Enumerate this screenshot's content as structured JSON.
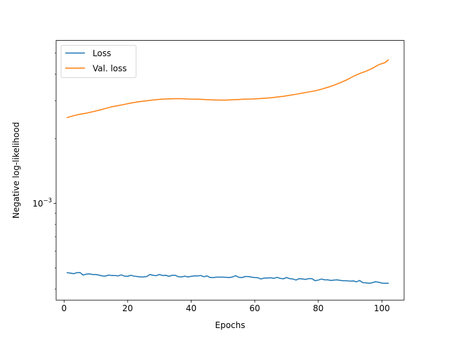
{
  "chart_data": {
    "type": "line",
    "title": "",
    "xlabel": "Epochs",
    "ylabel": "Negative log-likelihood",
    "yscale": "log",
    "xlim": [
      -2.5,
      107.0
    ],
    "ylim": [
      0.000355,
      0.00573
    ],
    "x_ticks": [
      0,
      20,
      40,
      60,
      80,
      100
    ],
    "x_tick_labels": [
      "0",
      "20",
      "40",
      "60",
      "80",
      "100"
    ],
    "y_major_ticks": [
      0.001
    ],
    "y_tick_labels": [
      {
        "base": "10",
        "exp": "−3"
      }
    ],
    "legend_position": "upper-left",
    "grid": false,
    "series": [
      {
        "name": "Loss",
        "color": "#1f77b4",
        "x": [
          1,
          2,
          3,
          4,
          5,
          6,
          7,
          8,
          9,
          10,
          11,
          12,
          13,
          14,
          15,
          16,
          17,
          18,
          19,
          20,
          21,
          22,
          23,
          24,
          25,
          26,
          27,
          28,
          29,
          30,
          31,
          32,
          33,
          34,
          35,
          36,
          37,
          38,
          39,
          40,
          41,
          42,
          43,
          44,
          45,
          46,
          47,
          48,
          49,
          50,
          51,
          52,
          53,
          54,
          55,
          56,
          57,
          58,
          59,
          60,
          61,
          62,
          63,
          64,
          65,
          66,
          67,
          68,
          69,
          70,
          71,
          72,
          73,
          74,
          75,
          76,
          77,
          78,
          79,
          80,
          81,
          82,
          83,
          84,
          85,
          86,
          87,
          88,
          89,
          90,
          91,
          92,
          93,
          94,
          95,
          96,
          97,
          98,
          99,
          100,
          101,
          102
        ],
        "values": [
          0.000476,
          0.000474,
          0.000471,
          0.000476,
          0.000477,
          0.000464,
          0.000469,
          0.00047,
          0.000467,
          0.000467,
          0.000464,
          0.00046,
          0.000459,
          0.000464,
          0.000462,
          0.000462,
          0.00046,
          0.000465,
          0.000459,
          0.000458,
          0.000463,
          0.000459,
          0.000457,
          0.000455,
          0.000455,
          0.000457,
          0.000467,
          0.000463,
          0.000461,
          0.000467,
          0.000462,
          0.000463,
          0.000458,
          0.000463,
          0.000463,
          0.000456,
          0.000455,
          0.000459,
          0.000455,
          0.000458,
          0.00046,
          0.00046,
          0.000462,
          0.000456,
          0.00046,
          0.000452,
          0.000452,
          0.000454,
          0.000454,
          0.000454,
          0.000453,
          0.000452,
          0.000455,
          0.000461,
          0.000453,
          0.000452,
          0.000457,
          0.000457,
          0.000454,
          0.000452,
          0.000451,
          0.000445,
          0.00045,
          0.00045,
          0.000451,
          0.000448,
          0.000453,
          0.000448,
          0.000446,
          0.000452,
          0.000447,
          0.000445,
          0.00044,
          0.000447,
          0.000445,
          0.000443,
          0.000447,
          0.000447,
          0.000437,
          0.00044,
          0.000445,
          0.000441,
          0.000441,
          0.000438,
          0.00044,
          0.000441,
          0.000438,
          0.000437,
          0.000437,
          0.000435,
          0.000436,
          0.000432,
          0.000438,
          0.000428,
          0.000427,
          0.000425,
          0.000428,
          0.000432,
          0.00043,
          0.000426,
          0.000425,
          0.000425
        ]
      },
      {
        "name": "Val. loss",
        "color": "#ff7f0e",
        "x": [
          1,
          3,
          5,
          7,
          9,
          11,
          13,
          15,
          17,
          19,
          21,
          23,
          25,
          27,
          29,
          31,
          33,
          35,
          37,
          39,
          41,
          43,
          45,
          47,
          49,
          51,
          53,
          55,
          57,
          59,
          61,
          63,
          65,
          67,
          69,
          71,
          73,
          75,
          77,
          79,
          81,
          83,
          85,
          87,
          89,
          91,
          93,
          95,
          97,
          99,
          101,
          102
        ],
        "values": [
          0.00251,
          0.00256,
          0.0026,
          0.00263,
          0.00267,
          0.002715,
          0.002765,
          0.002815,
          0.00285,
          0.00289,
          0.00293,
          0.002965,
          0.00299,
          0.003015,
          0.00304,
          0.003055,
          0.003065,
          0.00307,
          0.00307,
          0.00306,
          0.003055,
          0.00305,
          0.00304,
          0.00303,
          0.003025,
          0.003025,
          0.003035,
          0.003045,
          0.003055,
          0.00306,
          0.00307,
          0.003085,
          0.0031,
          0.003125,
          0.00315,
          0.003185,
          0.00322,
          0.00326,
          0.0033,
          0.00334,
          0.0034,
          0.00347,
          0.00355,
          0.00365,
          0.00376,
          0.0039,
          0.00402,
          0.00412,
          0.00425,
          0.00442,
          0.00452,
          0.00465
        ]
      }
    ]
  }
}
